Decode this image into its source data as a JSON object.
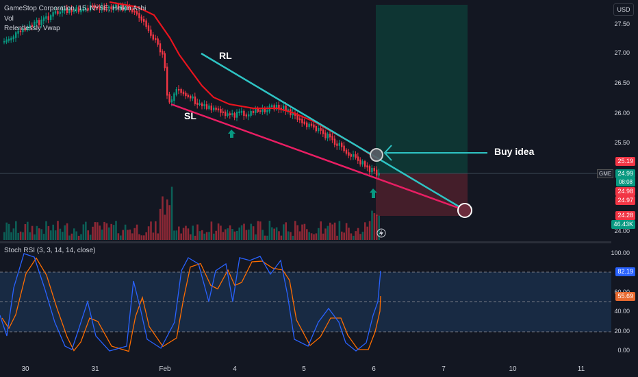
{
  "header": {
    "title": "GameStop Corporation, 15, NYSE, Heikin Ashi",
    "indicator_vol": "Vol",
    "indicator_vwap": "Relentlessly Vwap"
  },
  "price_axis": {
    "currency": "USD",
    "ticks": [
      "27.50",
      "27.00",
      "26.50",
      "26.00",
      "25.50",
      "24.00"
    ]
  },
  "price_tags": [
    {
      "text": "25.19",
      "color": "#f23645"
    },
    {
      "text": "24.99",
      "color": "#089981"
    },
    {
      "text": "08:08",
      "color": "#089981"
    },
    {
      "text": "24.98",
      "color": "#f23645"
    },
    {
      "text": "24.97",
      "color": "#f23645"
    },
    {
      "text": "24.28",
      "color": "#f23645"
    },
    {
      "text": "46.43K",
      "color": "#089981"
    }
  ],
  "symbol_tag": "GME",
  "annotations": {
    "resistance": "RL",
    "support": "SL",
    "idea": "Buy idea"
  },
  "rsi_panel": {
    "title": "Stoch RSI (3, 3, 14, 14, close)",
    "ticks": [
      "100.00",
      "60.00",
      "40.00",
      "20.00",
      "0.00"
    ],
    "k_value": "82.19",
    "d_value": "55.69",
    "k_color": "#2962ff",
    "d_color": "#ff6d00"
  },
  "time_axis": [
    "30",
    "31",
    "Feb",
    "4",
    "5",
    "6",
    "7",
    "10",
    "11"
  ],
  "colors": {
    "up": "#089981",
    "down": "#f23645",
    "vwap": "#e8141e",
    "resistance_line": "#2ec4c4",
    "support_line": "#e91e63"
  }
}
